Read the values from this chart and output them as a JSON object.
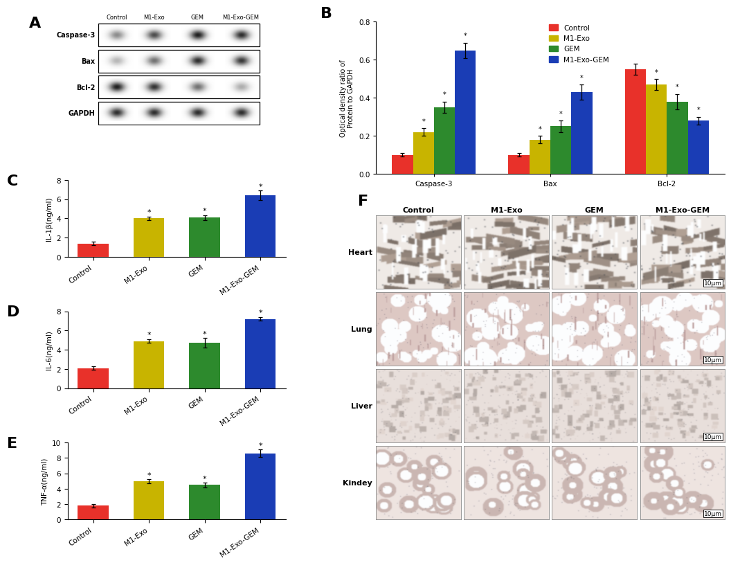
{
  "panel_B": {
    "categories": [
      "Caspase-3",
      "Bax",
      "Bcl-2"
    ],
    "groups": [
      "Control",
      "M1-Exo",
      "GEM",
      "M1-Exo-GEM"
    ],
    "colors": [
      "#e8312a",
      "#c8b400",
      "#2d8a2d",
      "#1a3db5"
    ],
    "values": {
      "Caspase-3": [
        0.1,
        0.22,
        0.35,
        0.65
      ],
      "Bax": [
        0.1,
        0.18,
        0.25,
        0.43
      ],
      "Bcl-2": [
        0.55,
        0.47,
        0.38,
        0.28
      ]
    },
    "errors": {
      "Caspase-3": [
        0.01,
        0.02,
        0.03,
        0.04
      ],
      "Bax": [
        0.01,
        0.02,
        0.03,
        0.04
      ],
      "Bcl-2": [
        0.03,
        0.03,
        0.04,
        0.02
      ]
    },
    "ylabel": "Optical density ratio of\nProtein to GAPDH",
    "ylim": [
      0.0,
      0.8
    ],
    "yticks": [
      0.0,
      0.2,
      0.4,
      0.6,
      0.8
    ]
  },
  "panel_C": {
    "categories": [
      "Control",
      "M1-Exo",
      "GEM",
      "M1-Exo-GEM"
    ],
    "colors": [
      "#e8312a",
      "#c8b400",
      "#2d8a2d",
      "#1a3db5"
    ],
    "values": [
      1.4,
      4.0,
      4.1,
      6.4
    ],
    "errors": [
      0.15,
      0.2,
      0.25,
      0.5
    ],
    "ylabel": "IL-1β(ng/ml)",
    "ylim": [
      0,
      8
    ],
    "yticks": [
      0,
      2,
      4,
      6,
      8
    ]
  },
  "panel_D": {
    "categories": [
      "Control",
      "M1-Exo",
      "GEM",
      "M1-Exo-GEM"
    ],
    "colors": [
      "#e8312a",
      "#c8b400",
      "#2d8a2d",
      "#1a3db5"
    ],
    "values": [
      2.1,
      4.9,
      4.7,
      7.2
    ],
    "errors": [
      0.15,
      0.2,
      0.5,
      0.2
    ],
    "ylabel": "IL-6(ng/ml)",
    "ylim": [
      0,
      8
    ],
    "yticks": [
      0,
      2,
      4,
      6,
      8
    ]
  },
  "panel_E": {
    "categories": [
      "Control",
      "M1-Exo",
      "GEM",
      "M1-Exo-GEM"
    ],
    "colors": [
      "#e8312a",
      "#c8b400",
      "#2d8a2d",
      "#1a3db5"
    ],
    "values": [
      1.8,
      5.0,
      4.5,
      8.6
    ],
    "errors": [
      0.2,
      0.25,
      0.3,
      0.5
    ],
    "ylabel": "TNF-α(ng/ml)",
    "ylim": [
      0,
      10
    ],
    "yticks": [
      0,
      2,
      4,
      6,
      8,
      10
    ]
  },
  "panel_F": {
    "col_labels": [
      "Control",
      "M1-Exo",
      "GEM",
      "M1-Exo-GEM"
    ],
    "row_labels": [
      "Heart",
      "Lung",
      "Liver",
      "Kindey"
    ],
    "scale_text": "10μm"
  },
  "colors": {
    "Control": "#e8312a",
    "M1-Exo": "#c8b400",
    "GEM": "#2d8a2d",
    "M1-Exo-GEM": "#1a3db5"
  },
  "bg_color": "#ffffff",
  "bar_width": 0.18
}
